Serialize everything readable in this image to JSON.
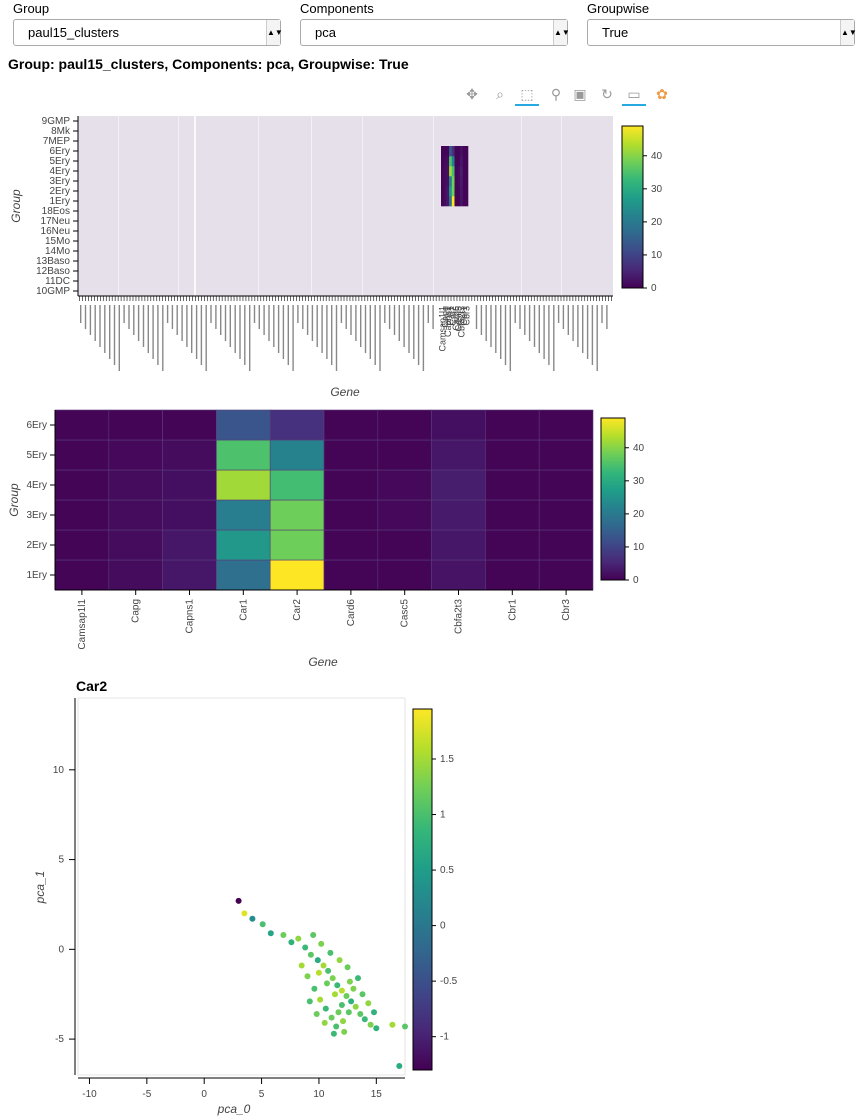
{
  "controls": [
    {
      "label": "Group",
      "value": "paul15_clusters"
    },
    {
      "label": "Components",
      "value": "pca"
    },
    {
      "label": "Groupwise",
      "value": "True"
    }
  ],
  "heading": "Group: paul15_clusters, Components: pca, Groupwise: True",
  "toolbar": {
    "icons": [
      "pan-icon",
      "box-zoom-icon",
      "box-select-icon",
      "wheel-zoom-icon",
      "save-icon",
      "reset-icon",
      "hover-icon",
      "bokeh-logo-icon"
    ]
  },
  "colors": {
    "viridis": [
      "#440154",
      "#482878",
      "#3e4989",
      "#31688e",
      "#26828e",
      "#1f9e89",
      "#35b779",
      "#6ece58",
      "#b5de2b",
      "#fde725"
    ],
    "background": "#e5e0ea"
  },
  "chart_data": [
    {
      "type": "heatmap",
      "name": "overview",
      "xlabel": "Gene",
      "ylabel": "Group",
      "groups": [
        "10GMP",
        "11DC",
        "12Baso",
        "13Baso",
        "14Mo",
        "15Mo",
        "16Neu",
        "17Neu",
        "18Eos",
        "1Ery",
        "2Ery",
        "3Ery",
        "4Ery",
        "5Ery",
        "6Ery",
        "7MEP",
        "8Mk",
        "9GMP"
      ],
      "colorbar_ticks": [
        0,
        10,
        20,
        30,
        40
      ],
      "clim": [
        0,
        49
      ],
      "highlight_block": {
        "groups": [
          "1Ery",
          "2Ery",
          "3Ery",
          "4Ery",
          "5Ery",
          "6Ery"
        ],
        "genes": [
          "Camsap1l1",
          "Capg",
          "Capns1",
          "Car1",
          "Car2",
          "Card6",
          "Casc5",
          "Cbfa2t3",
          "Cbr1",
          "Cbr3"
        ]
      }
    },
    {
      "type": "heatmap",
      "name": "detail",
      "xlabel": "Gene",
      "ylabel": "Group",
      "genes": [
        "Camsap1l1",
        "Capg",
        "Capns1",
        "Car1",
        "Car2",
        "Card6",
        "Casc5",
        "Cbfa2t3",
        "Cbr1",
        "Cbr3"
      ],
      "groups": [
        "1Ery",
        "2Ery",
        "3Ery",
        "4Ery",
        "5Ery",
        "6Ery"
      ],
      "values": [
        [
          0.5,
          1.5,
          3,
          18,
          49,
          0.5,
          0.5,
          2.5,
          0.5,
          0.5
        ],
        [
          0.5,
          1.5,
          3,
          26,
          38,
          0.5,
          0.5,
          3,
          0.5,
          0.5
        ],
        [
          0.5,
          1.5,
          2,
          21,
          38,
          0.5,
          1,
          3.5,
          0.5,
          0.5
        ],
        [
          0.5,
          1.5,
          2,
          42,
          34,
          0.5,
          1,
          4,
          0.5,
          0.5
        ],
        [
          0.5,
          1,
          1.5,
          35,
          22,
          0.5,
          0.5,
          3,
          0.5,
          0.5
        ],
        [
          0.5,
          0.5,
          0.5,
          13,
          7,
          0.5,
          0.5,
          2,
          0.5,
          0.5
        ]
      ],
      "colorbar_ticks": [
        0,
        10,
        20,
        30,
        40
      ],
      "clim": [
        0,
        49
      ]
    },
    {
      "type": "scatter",
      "name": "embedding",
      "title": "Car2",
      "xlabel": "pca_0",
      "ylabel": "pca_1",
      "xlim": [
        -11,
        17.5
      ],
      "ylim": [
        -7,
        14
      ],
      "xticks": [
        -10,
        -5,
        0,
        5,
        10,
        15
      ],
      "yticks": [
        -5,
        0,
        5,
        10
      ],
      "colorbar_ticks": [
        -1,
        -0.5,
        0,
        0.5,
        1,
        1.5
      ],
      "colorbar_tick_labels": [
        "-1",
        "-0.5",
        "0",
        "0.5",
        "1",
        "1.5"
      ],
      "clim": [
        -1.3,
        1.95
      ],
      "points": [
        [
          3,
          2.7,
          -1.3
        ],
        [
          3.5,
          2.0,
          1.8
        ],
        [
          4.2,
          1.7,
          0.3
        ],
        [
          5.1,
          1.4,
          1.0
        ],
        [
          5.8,
          0.9,
          0.6
        ],
        [
          6.9,
          0.8,
          1.2
        ],
        [
          7.6,
          0.4,
          0.8
        ],
        [
          8.2,
          0.6,
          1.4
        ],
        [
          8.8,
          0.1,
          0.9
        ],
        [
          9.3,
          -0.3,
          1.1
        ],
        [
          9.9,
          -0.6,
          0.7
        ],
        [
          10.4,
          -0.9,
          1.5
        ],
        [
          10.8,
          -1.2,
          1.0
        ],
        [
          11.2,
          -1.6,
          1.3
        ],
        [
          11.6,
          -2.0,
          0.9
        ],
        [
          12.0,
          -2.3,
          1.6
        ],
        [
          12.4,
          -2.6,
          1.2
        ],
        [
          12.8,
          -2.9,
          0.8
        ],
        [
          13.2,
          -3.2,
          1.4
        ],
        [
          13.6,
          -3.6,
          1.1
        ],
        [
          14.0,
          -3.9,
          0.9
        ],
        [
          14.5,
          -4.2,
          1.3
        ],
        [
          15.0,
          -4.4,
          0.8
        ],
        [
          17.5,
          -4.3,
          1.1
        ],
        [
          16.4,
          -4.2,
          1.5
        ],
        [
          17.0,
          -6.5,
          0.7
        ],
        [
          9.0,
          -1.5,
          1.3
        ],
        [
          9.6,
          -2.2,
          1.0
        ],
        [
          10.1,
          -2.8,
          1.5
        ],
        [
          10.6,
          -3.3,
          0.9
        ],
        [
          11.1,
          -3.8,
          1.2
        ],
        [
          11.5,
          -4.3,
          1.0
        ],
        [
          12.1,
          -4.0,
          1.4
        ],
        [
          12.6,
          -3.5,
          1.1
        ],
        [
          13.0,
          -2.2,
          1.3
        ],
        [
          13.4,
          -1.6,
          0.9
        ],
        [
          12.5,
          -1.0,
          1.2
        ],
        [
          11.8,
          -0.6,
          1.4
        ],
        [
          11.0,
          -0.2,
          1.0
        ],
        [
          10.2,
          0.3,
          1.3
        ],
        [
          9.5,
          0.8,
          1.1
        ],
        [
          8.5,
          -0.9,
          1.5
        ],
        [
          9.2,
          -2.9,
          1.0
        ],
        [
          9.8,
          -3.6,
          1.2
        ],
        [
          10.5,
          -4.1,
          1.4
        ],
        [
          11.3,
          -4.7,
          0.9
        ],
        [
          12.2,
          -4.6,
          1.3
        ],
        [
          13.8,
          -2.5,
          1.1
        ],
        [
          14.3,
          -3.0,
          1.4
        ],
        [
          14.8,
          -3.5,
          0.8
        ],
        [
          10.0,
          -1.3,
          1.6
        ],
        [
          10.7,
          -1.9,
          1.2
        ],
        [
          11.4,
          -2.5,
          1.5
        ],
        [
          12.0,
          -3.1,
          1.0
        ],
        [
          12.7,
          -1.8,
          1.3
        ],
        [
          11.7,
          -3.5,
          1.2
        ]
      ]
    }
  ]
}
